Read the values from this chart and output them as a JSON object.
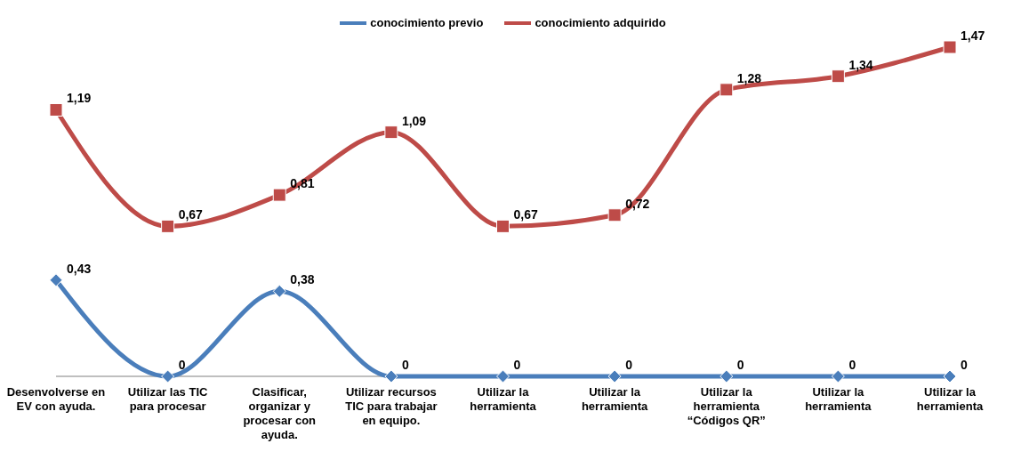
{
  "chart_data": {
    "type": "line",
    "categories": [
      "Desenvolverse en EV con ayuda.",
      "Utilizar las TIC para procesar",
      "Clasificar, organizar y procesar con ayuda.",
      "Utilizar recursos TIC para trabajar en equipo.",
      "Utilizar la herramienta",
      "Utilizar la herramienta",
      "Utilizar la herramienta “Códigos QR”",
      "Utilizar la herramienta",
      "Utilizar la herramienta"
    ],
    "series": [
      {
        "name": "conocimiento previo",
        "color": "#4a7ebb",
        "marker": "diamond",
        "values": [
          0.43,
          0,
          0.38,
          0,
          0,
          0,
          0,
          0,
          0
        ],
        "value_labels": [
          "0,43",
          "0",
          "0,38",
          "0",
          "0",
          "0",
          "0",
          "0",
          "0"
        ]
      },
      {
        "name": "conocimiento adquirido",
        "color": "#be4b48",
        "marker": "square",
        "values": [
          1.19,
          0.67,
          0.81,
          1.09,
          0.67,
          0.72,
          1.28,
          1.34,
          1.47
        ],
        "value_labels": [
          "1,19",
          "0,67",
          "0,81",
          "1,09",
          "0,67",
          "0,72",
          "1,28",
          "1,34",
          "1,47"
        ]
      }
    ],
    "legend": "top",
    "grid": false
  }
}
